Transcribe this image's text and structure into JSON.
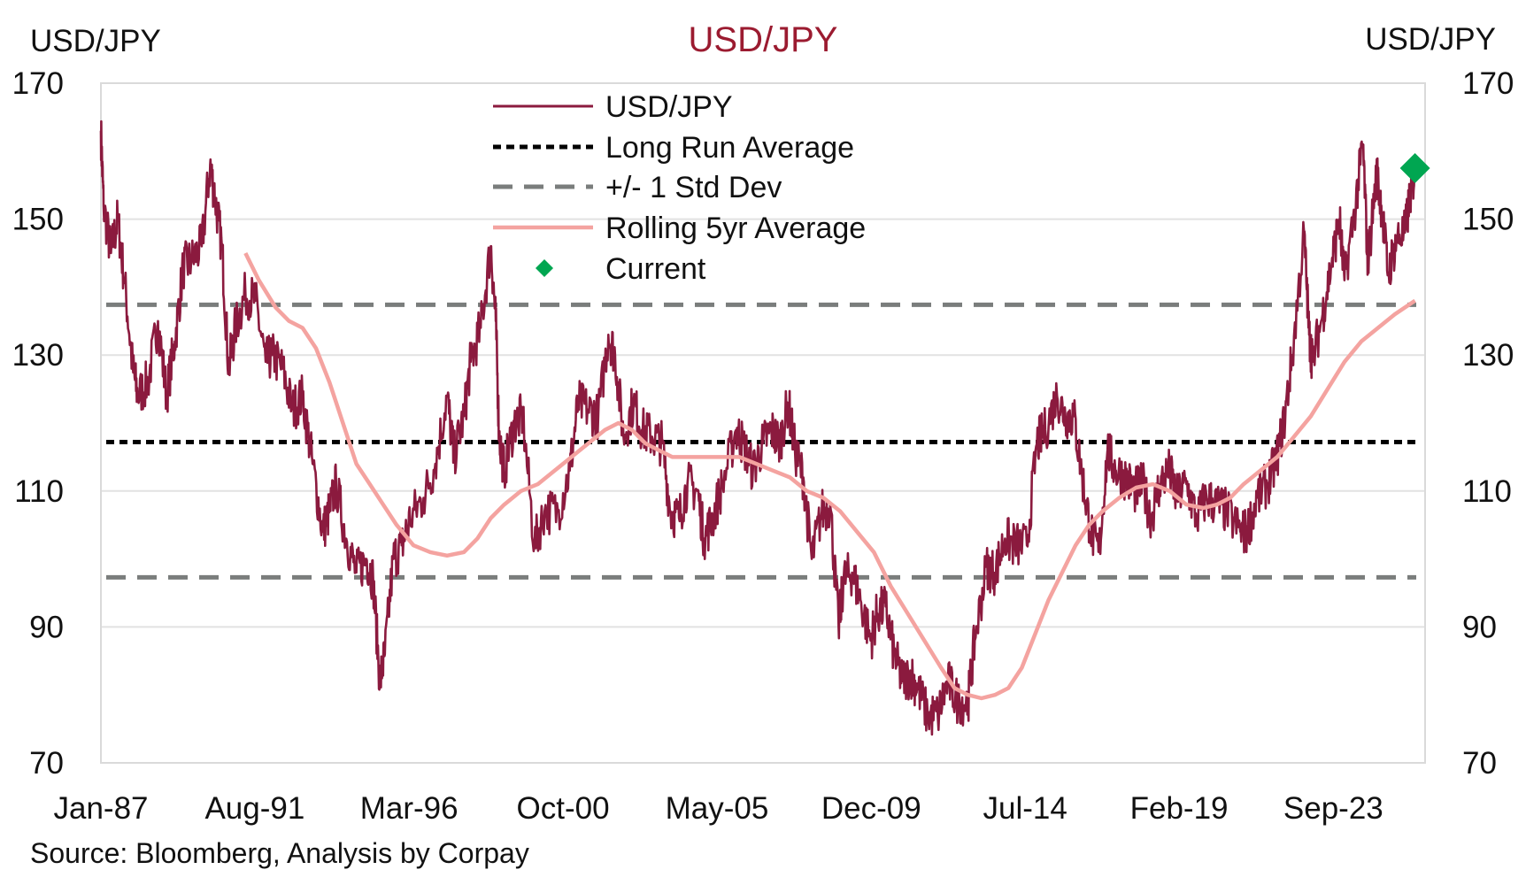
{
  "chart_data": {
    "type": "line",
    "title": "USD/JPY",
    "ylabel_left": "USD/JPY",
    "ylabel_right": "USD/JPY",
    "source": "Source: Bloomberg, Analysis by Corpay",
    "ylim": [
      70,
      170
    ],
    "yticks": [
      "70",
      "90",
      "110",
      "130",
      "150",
      "170"
    ],
    "xlim": [
      1987.0,
      2026.4
    ],
    "xticks": [
      {
        "label": "Jan-87",
        "x": 1987.0
      },
      {
        "label": "Aug-91",
        "x": 1991.58
      },
      {
        "label": "Mar-96",
        "x": 1996.17
      },
      {
        "label": "Oct-00",
        "x": 2000.75
      },
      {
        "label": "May-05",
        "x": 2005.33
      },
      {
        "label": "Dec-09",
        "x": 2009.92
      },
      {
        "label": "Jul-14",
        "x": 2014.5
      },
      {
        "label": "Feb-19",
        "x": 2019.08
      },
      {
        "label": "Sep-23",
        "x": 2023.67
      }
    ],
    "grid": true,
    "legend_position": "top-center",
    "legend": [
      "USD/JPY",
      "Long Run Average",
      "+/- 1 Std Dev",
      "Rolling 5yr Average",
      "Current"
    ],
    "colors": {
      "usdjpy": "#8b1a3e",
      "average": "#000000",
      "stddev": "#7a7d7c",
      "rolling": "#f4a3a0",
      "current": "#00a651",
      "title": "#9b1b30"
    },
    "long_run_average": 117.2,
    "std_dev_bands": [
      97.3,
      137.4
    ],
    "current": {
      "x": 2026.1,
      "y": 157.5
    },
    "series": [
      {
        "name": "USD/JPY",
        "points": [
          [
            1987.0,
            163
          ],
          [
            1987.08,
            152
          ],
          [
            1987.3,
            145
          ],
          [
            1987.5,
            150
          ],
          [
            1987.7,
            141
          ],
          [
            1987.95,
            128
          ],
          [
            1988.1,
            124
          ],
          [
            1988.4,
            126
          ],
          [
            1988.7,
            135
          ],
          [
            1988.95,
            124
          ],
          [
            1989.2,
            132
          ],
          [
            1989.45,
            143
          ],
          [
            1989.7,
            144
          ],
          [
            1990.0,
            146
          ],
          [
            1990.25,
            158
          ],
          [
            1990.4,
            153
          ],
          [
            1990.6,
            146
          ],
          [
            1990.8,
            128
          ],
          [
            1991.0,
            134
          ],
          [
            1991.3,
            139
          ],
          [
            1991.6,
            138
          ],
          [
            1991.9,
            129
          ],
          [
            1992.1,
            130
          ],
          [
            1992.4,
            128
          ],
          [
            1992.7,
            122
          ],
          [
            1993.0,
            124
          ],
          [
            1993.3,
            114
          ],
          [
            1993.6,
            104
          ],
          [
            1993.8,
            107
          ],
          [
            1994.0,
            111
          ],
          [
            1994.3,
            103
          ],
          [
            1994.6,
            98
          ],
          [
            1994.9,
            100
          ],
          [
            1995.1,
            97
          ],
          [
            1995.3,
            82
          ],
          [
            1995.45,
            86
          ],
          [
            1995.7,
            100
          ],
          [
            1995.95,
            102
          ],
          [
            1996.2,
            106
          ],
          [
            1996.6,
            109
          ],
          [
            1996.95,
            114
          ],
          [
            1997.3,
            124
          ],
          [
            1997.5,
            115
          ],
          [
            1997.8,
            121
          ],
          [
            1998.0,
            129
          ],
          [
            1998.3,
            134
          ],
          [
            1998.6,
            146
          ],
          [
            1998.75,
            135
          ],
          [
            1998.85,
            118
          ],
          [
            1999.0,
            113
          ],
          [
            1999.3,
            120
          ],
          [
            1999.55,
            121
          ],
          [
            1999.9,
            102
          ],
          [
            2000.2,
            107
          ],
          [
            2000.6,
            107
          ],
          [
            2000.95,
            113
          ],
          [
            2001.2,
            123
          ],
          [
            2001.5,
            122
          ],
          [
            2001.8,
            121
          ],
          [
            2002.1,
            133
          ],
          [
            2002.3,
            130
          ],
          [
            2002.55,
            118
          ],
          [
            2002.85,
            123
          ],
          [
            2003.1,
            119
          ],
          [
            2003.4,
            118
          ],
          [
            2003.7,
            117
          ],
          [
            2003.95,
            107
          ],
          [
            2004.2,
            106
          ],
          [
            2004.45,
            111
          ],
          [
            2004.75,
            110
          ],
          [
            2004.95,
            103
          ],
          [
            2005.2,
            106
          ],
          [
            2005.5,
            111
          ],
          [
            2005.9,
            119
          ],
          [
            2006.1,
            117
          ],
          [
            2006.4,
            113
          ],
          [
            2006.7,
            117
          ],
          [
            2006.95,
            119
          ],
          [
            2007.2,
            117
          ],
          [
            2007.45,
            123
          ],
          [
            2007.65,
            116
          ],
          [
            2007.9,
            112
          ],
          [
            2008.15,
            100
          ],
          [
            2008.45,
            107
          ],
          [
            2008.7,
            108
          ],
          [
            2008.95,
            90
          ],
          [
            2009.1,
            97
          ],
          [
            2009.35,
            98
          ],
          [
            2009.6,
            94
          ],
          [
            2009.9,
            88
          ],
          [
            2010.1,
            92
          ],
          [
            2010.35,
            93
          ],
          [
            2010.6,
            86
          ],
          [
            2010.85,
            82
          ],
          [
            2011.1,
            83
          ],
          [
            2011.3,
            81
          ],
          [
            2011.6,
            77
          ],
          [
            2011.9,
            77
          ],
          [
            2012.2,
            82
          ],
          [
            2012.5,
            79
          ],
          [
            2012.8,
            79
          ],
          [
            2013.0,
            88
          ],
          [
            2013.35,
            99
          ],
          [
            2013.6,
            98
          ],
          [
            2013.9,
            103
          ],
          [
            2014.2,
            102
          ],
          [
            2014.55,
            102
          ],
          [
            2014.85,
            117
          ],
          [
            2015.1,
            119
          ],
          [
            2015.45,
            124
          ],
          [
            2015.7,
            121
          ],
          [
            2015.95,
            121
          ],
          [
            2016.2,
            112
          ],
          [
            2016.45,
            104
          ],
          [
            2016.7,
            101
          ],
          [
            2016.95,
            116
          ],
          [
            2017.2,
            113
          ],
          [
            2017.5,
            112
          ],
          [
            2017.75,
            110
          ],
          [
            2018.0,
            111
          ],
          [
            2018.25,
            106
          ],
          [
            2018.5,
            111
          ],
          [
            2018.8,
            113
          ],
          [
            2019.0,
            109
          ],
          [
            2019.3,
            111
          ],
          [
            2019.6,
            106
          ],
          [
            2019.9,
            109
          ],
          [
            2020.2,
            108
          ],
          [
            2020.5,
            107
          ],
          [
            2020.9,
            104
          ],
          [
            2021.1,
            104
          ],
          [
            2021.4,
            109
          ],
          [
            2021.7,
            111
          ],
          [
            2021.95,
            114
          ],
          [
            2022.2,
            120
          ],
          [
            2022.45,
            130
          ],
          [
            2022.8,
            148
          ],
          [
            2022.95,
            133
          ],
          [
            2023.05,
            129
          ],
          [
            2023.35,
            136
          ],
          [
            2023.6,
            143
          ],
          [
            2023.85,
            150
          ],
          [
            2024.0,
            141
          ],
          [
            2024.3,
            151
          ],
          [
            2024.55,
            161
          ],
          [
            2024.7,
            143
          ],
          [
            2024.95,
            157
          ],
          [
            2025.1,
            152
          ],
          [
            2025.3,
            142
          ],
          [
            2025.55,
            147
          ],
          [
            2025.8,
            148
          ],
          [
            2026.0,
            155
          ],
          [
            2026.1,
            157
          ]
        ]
      },
      {
        "name": "Rolling 5yr Average",
        "points": [
          [
            1991.3,
            145
          ],
          [
            1991.7,
            141
          ],
          [
            1992.2,
            137
          ],
          [
            1992.6,
            135
          ],
          [
            1993.0,
            134
          ],
          [
            1993.4,
            131
          ],
          [
            1993.8,
            126
          ],
          [
            1994.2,
            120
          ],
          [
            1994.6,
            114
          ],
          [
            1995.0,
            111
          ],
          [
            1995.4,
            108
          ],
          [
            1995.8,
            105
          ],
          [
            1996.3,
            102
          ],
          [
            1996.8,
            101
          ],
          [
            1997.3,
            100.5
          ],
          [
            1997.8,
            101
          ],
          [
            1998.2,
            103
          ],
          [
            1998.6,
            106
          ],
          [
            1999.0,
            108
          ],
          [
            1999.5,
            110
          ],
          [
            2000.0,
            111
          ],
          [
            2000.5,
            113
          ],
          [
            2001.0,
            115
          ],
          [
            2001.5,
            117
          ],
          [
            2002.0,
            119
          ],
          [
            2002.4,
            120
          ],
          [
            2002.8,
            119
          ],
          [
            2003.2,
            117
          ],
          [
            2003.6,
            116
          ],
          [
            2004.0,
            115
          ],
          [
            2004.5,
            115
          ],
          [
            2005.0,
            115
          ],
          [
            2005.5,
            115
          ],
          [
            2006.0,
            115
          ],
          [
            2006.5,
            114
          ],
          [
            2007.0,
            113
          ],
          [
            2007.5,
            112
          ],
          [
            2008.0,
            110
          ],
          [
            2008.5,
            109
          ],
          [
            2009.0,
            107
          ],
          [
            2009.5,
            104
          ],
          [
            2010.0,
            101
          ],
          [
            2010.5,
            96
          ],
          [
            2011.0,
            92
          ],
          [
            2011.5,
            88
          ],
          [
            2012.0,
            84
          ],
          [
            2012.4,
            81
          ],
          [
            2012.8,
            80
          ],
          [
            2013.2,
            79.5
          ],
          [
            2013.6,
            80
          ],
          [
            2014.0,
            81
          ],
          [
            2014.4,
            84
          ],
          [
            2014.8,
            89
          ],
          [
            2015.2,
            94
          ],
          [
            2015.6,
            98
          ],
          [
            2016.0,
            102
          ],
          [
            2016.4,
            105
          ],
          [
            2016.8,
            107
          ],
          [
            2017.3,
            109
          ],
          [
            2017.8,
            110.5
          ],
          [
            2018.3,
            111
          ],
          [
            2018.8,
            110
          ],
          [
            2019.3,
            108
          ],
          [
            2019.8,
            107.5
          ],
          [
            2020.2,
            108
          ],
          [
            2020.6,
            109
          ],
          [
            2021.0,
            111
          ],
          [
            2021.5,
            113
          ],
          [
            2022.0,
            115
          ],
          [
            2022.5,
            118
          ],
          [
            2023.0,
            121
          ],
          [
            2023.5,
            125
          ],
          [
            2024.0,
            129
          ],
          [
            2024.5,
            132
          ],
          [
            2025.0,
            134
          ],
          [
            2025.5,
            136
          ],
          [
            2026.1,
            138
          ]
        ]
      }
    ]
  }
}
